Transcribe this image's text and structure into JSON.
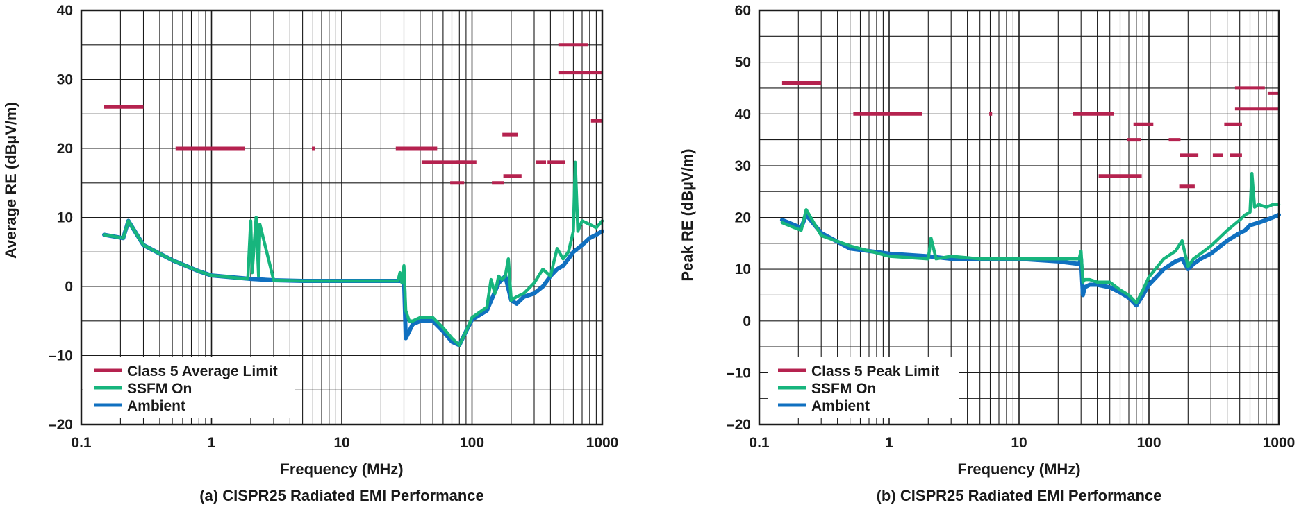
{
  "colors": {
    "limit": "#b5224f",
    "ssfm": "#17b57d",
    "ambient": "#1070c0",
    "grid": "#1a1a1a"
  },
  "chart_data": [
    {
      "id": "a",
      "type": "line",
      "xscale": "log",
      "xlim": [
        0.1,
        1000
      ],
      "ylim": [
        -20,
        40
      ],
      "xticks": [
        0.1,
        1,
        10,
        100,
        1000
      ],
      "xtick_labels": [
        "0.1",
        "1",
        "10",
        "100",
        "1000"
      ],
      "yticks": [
        -20,
        -10,
        0,
        10,
        20,
        30,
        40
      ],
      "ytick_labels": [
        "–20",
        "–10",
        "0",
        "10",
        "20",
        "30",
        "40"
      ],
      "xlabel": "Frequency (MHz)",
      "ylabel": "Average RE (dBµV/m)",
      "caption": "(a) CISPR25 Radiated EMI Performance",
      "legend_position": "bottom-left",
      "legend": [
        "Class 5 Average Limit",
        "SSFM On",
        "Ambient"
      ],
      "limit_segments": [
        {
          "x": [
            0.15,
            0.3
          ],
          "y": 26
        },
        {
          "x": [
            0.53,
            1.8
          ],
          "y": 20
        },
        {
          "x": [
            5.9,
            6.2
          ],
          "y": 20
        },
        {
          "x": [
            26,
            54
          ],
          "y": 20
        },
        {
          "x": [
            41,
            88
          ],
          "y": 18
        },
        {
          "x": [
            76,
            108
          ],
          "y": 18
        },
        {
          "x": [
            68,
            87
          ],
          "y": 15
        },
        {
          "x": [
            142,
            175
          ],
          "y": 15
        },
        {
          "x": [
            174,
            240
          ],
          "y": 16
        },
        {
          "x": [
            171,
            225
          ],
          "y": 22
        },
        {
          "x": [
            310,
            370
          ],
          "y": 18
        },
        {
          "x": [
            380,
            520
          ],
          "y": 18
        },
        {
          "x": [
            460,
            780
          ],
          "y": 35
        },
        {
          "x": [
            460,
            1000
          ],
          "y": 31
        },
        {
          "x": [
            820,
            1000
          ],
          "y": 24
        }
      ],
      "series": [
        {
          "name": "Ambient",
          "x": [
            0.15,
            0.21,
            0.23,
            0.3,
            0.5,
            0.8,
            1,
            2,
            3,
            5,
            10,
            20,
            28,
            30,
            31,
            32,
            35,
            40,
            50,
            60,
            70,
            80,
            90,
            100,
            130,
            160,
            180,
            200,
            220,
            250,
            300,
            350,
            400,
            450,
            500,
            550,
            600,
            700,
            800,
            900,
            1000
          ],
          "y": [
            7.5,
            7.0,
            9.5,
            6.0,
            3.8,
            2.2,
            1.6,
            1.1,
            0.9,
            0.8,
            0.8,
            0.8,
            0.8,
            1.5,
            -7.5,
            -7.0,
            -5.5,
            -5.0,
            -5.0,
            -6.5,
            -8.0,
            -8.5,
            -6.5,
            -4.8,
            -3.5,
            0.5,
            1.5,
            -2.0,
            -2.5,
            -1.5,
            -1.0,
            0.0,
            1.5,
            2.5,
            3.0,
            4.0,
            5.0,
            6.0,
            7.0,
            7.5,
            8.0
          ]
        },
        {
          "name": "SSFM On",
          "x": [
            0.15,
            0.21,
            0.23,
            0.3,
            0.5,
            0.8,
            1,
            1.9,
            2.0,
            2.05,
            2.2,
            2.3,
            2.35,
            3,
            5,
            10,
            20,
            27,
            28,
            29,
            30,
            31,
            33,
            35,
            40,
            50,
            60,
            70,
            80,
            90,
            100,
            130,
            140,
            150,
            160,
            170,
            180,
            190,
            200,
            220,
            250,
            300,
            350,
            400,
            450,
            500,
            550,
            600,
            620,
            650,
            700,
            800,
            900,
            1000
          ],
          "y": [
            7.5,
            7.0,
            9.5,
            6.0,
            3.8,
            2.2,
            1.6,
            1.1,
            9.5,
            2.0,
            10.0,
            1.5,
            9.0,
            0.9,
            0.8,
            0.8,
            0.8,
            0.8,
            2.0,
            0.5,
            3.0,
            -3.5,
            -5.0,
            -5.0,
            -4.5,
            -4.5,
            -6.0,
            -7.5,
            -8.5,
            -6.5,
            -4.5,
            -3.0,
            1.0,
            -1.0,
            1.5,
            1.0,
            1.5,
            4.0,
            -2.0,
            -1.5,
            -1.0,
            0.5,
            2.5,
            1.5,
            5.5,
            4.0,
            5.0,
            8.0,
            18.0,
            8.0,
            9.5,
            9.0,
            8.5,
            9.5
          ]
        }
      ]
    },
    {
      "id": "b",
      "type": "line",
      "xscale": "log",
      "xlim": [
        0.1,
        1000
      ],
      "ylim": [
        -20,
        60
      ],
      "xticks": [
        0.1,
        1,
        10,
        100,
        1000
      ],
      "xtick_labels": [
        "0.1",
        "1",
        "10",
        "100",
        "1000"
      ],
      "yticks": [
        -20,
        -10,
        0,
        10,
        20,
        30,
        40,
        50,
        60
      ],
      "ytick_labels": [
        "–20",
        "–10",
        "0",
        "10",
        "20",
        "30",
        "40",
        "50",
        "60"
      ],
      "xlabel": "Frequency (MHz)",
      "ylabel": "Peak RE (dBµV/m)",
      "caption": "(b) CISPR25 Radiated EMI Performance",
      "legend_position": "bottom-left",
      "legend": [
        "Class 5 Peak Limit",
        "SSFM On",
        "Ambient"
      ],
      "limit_segments": [
        {
          "x": [
            0.15,
            0.3
          ],
          "y": 46
        },
        {
          "x": [
            0.53,
            1.8
          ],
          "y": 40
        },
        {
          "x": [
            5.9,
            6.2
          ],
          "y": 40
        },
        {
          "x": [
            26,
            54
          ],
          "y": 40
        },
        {
          "x": [
            41,
            88
          ],
          "y": 28
        },
        {
          "x": [
            68,
            87
          ],
          "y": 35
        },
        {
          "x": [
            76,
            108
          ],
          "y": 38
        },
        {
          "x": [
            142,
            175
          ],
          "y": 35
        },
        {
          "x": [
            174,
            240
          ],
          "y": 32
        },
        {
          "x": [
            171,
            225
          ],
          "y": 26
        },
        {
          "x": [
            310,
            370
          ],
          "y": 32
        },
        {
          "x": [
            420,
            520
          ],
          "y": 32
        },
        {
          "x": [
            380,
            520
          ],
          "y": 38
        },
        {
          "x": [
            460,
            780
          ],
          "y": 45
        },
        {
          "x": [
            460,
            1000
          ],
          "y": 41
        },
        {
          "x": [
            820,
            1000
          ],
          "y": 44
        }
      ],
      "series": [
        {
          "name": "Ambient",
          "x": [
            0.15,
            0.21,
            0.23,
            0.3,
            0.5,
            1,
            2,
            3,
            5,
            10,
            20,
            29,
            30,
            31,
            32,
            35,
            40,
            50,
            60,
            70,
            80,
            90,
            100,
            130,
            160,
            180,
            200,
            220,
            250,
            300,
            400,
            500,
            550,
            600,
            700,
            800,
            900,
            1000
          ],
          "y": [
            19.5,
            18.0,
            20.5,
            17.0,
            14.0,
            13.0,
            12.5,
            12.0,
            12.0,
            12.0,
            11.5,
            11.0,
            12.0,
            5.0,
            6.5,
            7.0,
            7.0,
            6.5,
            5.5,
            4.5,
            3.0,
            5.0,
            7.0,
            10.0,
            11.5,
            12.0,
            10.0,
            11.0,
            12.0,
            13.0,
            15.5,
            17.0,
            17.5,
            18.5,
            19.0,
            19.5,
            20.0,
            20.5
          ]
        },
        {
          "name": "SSFM On",
          "x": [
            0.15,
            0.21,
            0.23,
            0.3,
            0.5,
            1,
            2,
            2.1,
            2.3,
            3,
            5,
            10,
            20,
            29,
            30,
            31,
            32,
            35,
            40,
            50,
            60,
            70,
            80,
            90,
            100,
            130,
            160,
            180,
            200,
            220,
            250,
            300,
            400,
            500,
            550,
            600,
            620,
            650,
            700,
            800,
            900,
            1000
          ],
          "y": [
            19.0,
            17.5,
            21.5,
            16.5,
            14.5,
            12.5,
            12.0,
            16.0,
            12.0,
            12.5,
            12.0,
            12.0,
            12.0,
            12.0,
            13.5,
            7.5,
            8.0,
            8.0,
            7.5,
            7.5,
            6.0,
            5.0,
            3.5,
            6.0,
            8.5,
            12.0,
            13.5,
            15.5,
            10.5,
            12.0,
            13.0,
            14.5,
            17.5,
            19.5,
            20.5,
            21.0,
            28.5,
            22.0,
            22.5,
            22.0,
            22.5,
            22.5
          ]
        }
      ]
    }
  ]
}
